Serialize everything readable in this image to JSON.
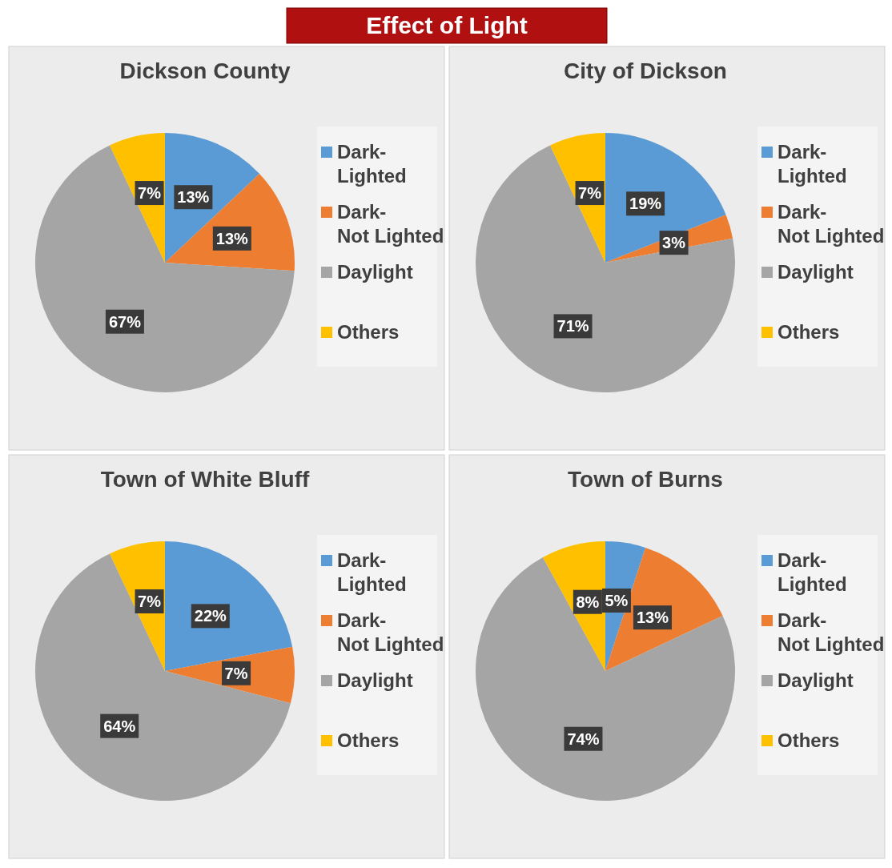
{
  "chart_data": [
    {
      "type": "pie",
      "title": "Dickson County",
      "annotations": [
        "Effect of Light"
      ],
      "categories": [
        "Dark-Lighted",
        "Dark-Not Lighted",
        "Daylight",
        "Others"
      ],
      "values": [
        13,
        13,
        67,
        7
      ],
      "colors": [
        "#5b9bd5",
        "#ed7d31",
        "#a5a5a5",
        "#ffc000"
      ],
      "value_labels": [
        "13%",
        "13%",
        "67%",
        "7%"
      ],
      "legend": "right"
    },
    {
      "type": "pie",
      "title": "City of Dickson",
      "categories": [
        "Dark-Lighted",
        "Dark-Not Lighted",
        "Daylight",
        "Others"
      ],
      "values": [
        19,
        3,
        71,
        7
      ],
      "colors": [
        "#5b9bd5",
        "#ed7d31",
        "#a5a5a5",
        "#ffc000"
      ],
      "value_labels": [
        "19%",
        "3%",
        "71%",
        "7%"
      ],
      "legend": "right"
    },
    {
      "type": "pie",
      "title": "Town of White Bluff",
      "categories": [
        "Dark-Lighted",
        "Dark-Not Lighted",
        "Daylight",
        "Others"
      ],
      "values": [
        22,
        7,
        64,
        7
      ],
      "colors": [
        "#5b9bd5",
        "#ed7d31",
        "#a5a5a5",
        "#ffc000"
      ],
      "value_labels": [
        "22%",
        "7%",
        "64%",
        "7%"
      ],
      "legend": "right"
    },
    {
      "type": "pie",
      "title": "Town of Burns",
      "categories": [
        "Dark-Lighted",
        "Dark-Not Lighted",
        "Daylight",
        "Others"
      ],
      "values": [
        5,
        13,
        74,
        8
      ],
      "colors": [
        "#5b9bd5",
        "#ed7d31",
        "#a5a5a5",
        "#ffc000"
      ],
      "value_labels": [
        "5%",
        "13%",
        "74%",
        "8%"
      ],
      "legend": "right"
    }
  ]
}
